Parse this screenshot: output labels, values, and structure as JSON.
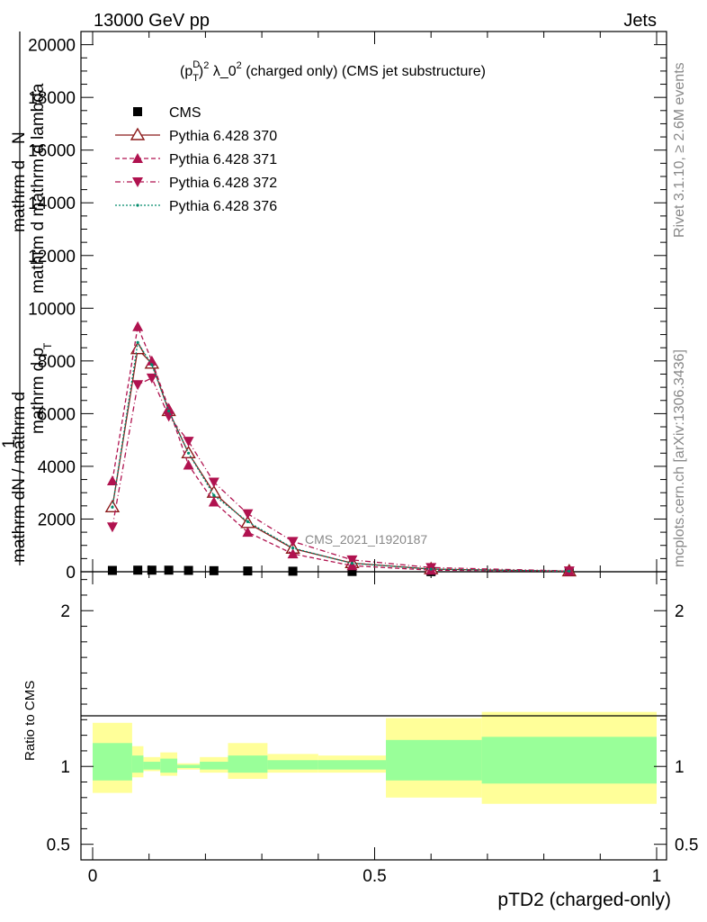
{
  "header": {
    "left": "13000 GeV pp",
    "right": "Jets"
  },
  "side_labels": {
    "rivet": "Rivet 3.1.10, ≥ 2.6M events",
    "mcplots": "mcplots.cern.ch [arXiv:1306.3436]"
  },
  "watermark": "CMS_2021_I1920187",
  "chart_data": [
    {
      "type": "line",
      "title": "(p_T^D)^2 λ_0^2 (charged only) (CMS jet substructure)",
      "title_parts": {
        "p": "(p",
        "sup_d": "D",
        "sub_t": "T",
        "close": ")",
        "sup2a": "2",
        "mid": " λ_0",
        "sup2b": "2",
        "rest": " (charged only) (CMS jet substructure)"
      },
      "ylabel": "1 / mathrm dN / mathrm d p_mathrm d mathrm dN / mathrm d mathrm d lambda",
      "ylabel_parts": {
        "numerator_top": "mathrm d",
        "numerator_sup": "2",
        "numerator_main": "N",
        "one": "1",
        "denominator": "mathrm d p",
        "denominator_sub": "T",
        "denominator_rest": "mathrm d mathrm d lambda",
        "frac": "mathrm dN / mathrm d"
      },
      "xlim": [
        0,
        1
      ],
      "ylim": [
        0,
        20500
      ],
      "yticks": [
        0,
        2000,
        4000,
        6000,
        8000,
        10000,
        12000,
        14000,
        16000,
        18000,
        20000
      ],
      "ytick_labels": [
        "0",
        "2000",
        "4000",
        "6000",
        "8000",
        "10000",
        "12000",
        "14000",
        "16000",
        "18000",
        "20000"
      ],
      "legend_position": "top-left",
      "x": [
        0.035,
        0.08,
        0.105,
        0.135,
        0.17,
        0.215,
        0.275,
        0.355,
        0.46,
        0.6,
        0.845
      ],
      "series": [
        {
          "name": "CMS",
          "color": "#000000",
          "marker": "square",
          "values": [
            50,
            60,
            60,
            60,
            50,
            40,
            30,
            20,
            10,
            5,
            2
          ]
        },
        {
          "name": "Pythia 6.428 370",
          "color": "#8b1a1a",
          "marker": "triangle-open",
          "dash": "solid",
          "values": [
            2450,
            8450,
            7900,
            6100,
            4500,
            3000,
            1850,
            880,
            330,
            100,
            20
          ]
        },
        {
          "name": "Pythia 6.428 371",
          "color": "#b0124f",
          "marker": "triangle-up",
          "dash": "dashed",
          "values": [
            3450,
            9300,
            8000,
            6200,
            4050,
            2650,
            1500,
            680,
            230,
            60,
            20
          ]
        },
        {
          "name": "Pythia 6.428 372",
          "color": "#b0124f",
          "marker": "triangle-down",
          "dash": "dashdot",
          "values": [
            1700,
            7100,
            7350,
            5900,
            4950,
            3400,
            2200,
            1150,
            450,
            160,
            30
          ]
        },
        {
          "name": "Pythia 6.428 376",
          "color": "#008b6b",
          "marker": "dot",
          "dash": "dotted",
          "values": [
            2450,
            8700,
            7850,
            6100,
            4500,
            2900,
            1900,
            900,
            320,
            100,
            20
          ]
        }
      ]
    },
    {
      "type": "area",
      "ylabel": "Ratio to CMS",
      "xlabel": "pTD2 (charged-only)",
      "xlim": [
        0,
        1
      ],
      "ylim": [
        0.4,
        2.25
      ],
      "yticks": [
        0.5,
        1,
        2
      ],
      "ytick_labels": [
        "0.5",
        "1",
        "2"
      ],
      "xticks": [
        0,
        0.5,
        1
      ],
      "xtick_labels": [
        "0",
        "0.5",
        "1"
      ],
      "reference": 1,
      "bin_edges": [
        0,
        0.07,
        0.09,
        0.12,
        0.15,
        0.19,
        0.24,
        0.31,
        0.4,
        0.52,
        0.69,
        1.0
      ],
      "band_stat_syst": {
        "name": "total uncertainty",
        "color": "#ffff99",
        "low": [
          0.83,
          0.93,
          0.97,
          0.94,
          0.98,
          0.96,
          0.92,
          0.96,
          0.96,
          0.8,
          0.76
        ],
        "high": [
          1.28,
          1.13,
          1.06,
          1.09,
          1.02,
          1.06,
          1.15,
          1.08,
          1.07,
          1.31,
          1.35
        ]
      },
      "band_stat": {
        "name": "stat uncertainty",
        "color": "#99ff99",
        "low": [
          0.91,
          0.96,
          0.98,
          0.96,
          0.99,
          0.98,
          0.96,
          0.98,
          0.98,
          0.91,
          0.89
        ],
        "high": [
          1.15,
          1.07,
          1.03,
          1.05,
          1.01,
          1.03,
          1.07,
          1.04,
          1.04,
          1.17,
          1.19
        ]
      }
    }
  ]
}
